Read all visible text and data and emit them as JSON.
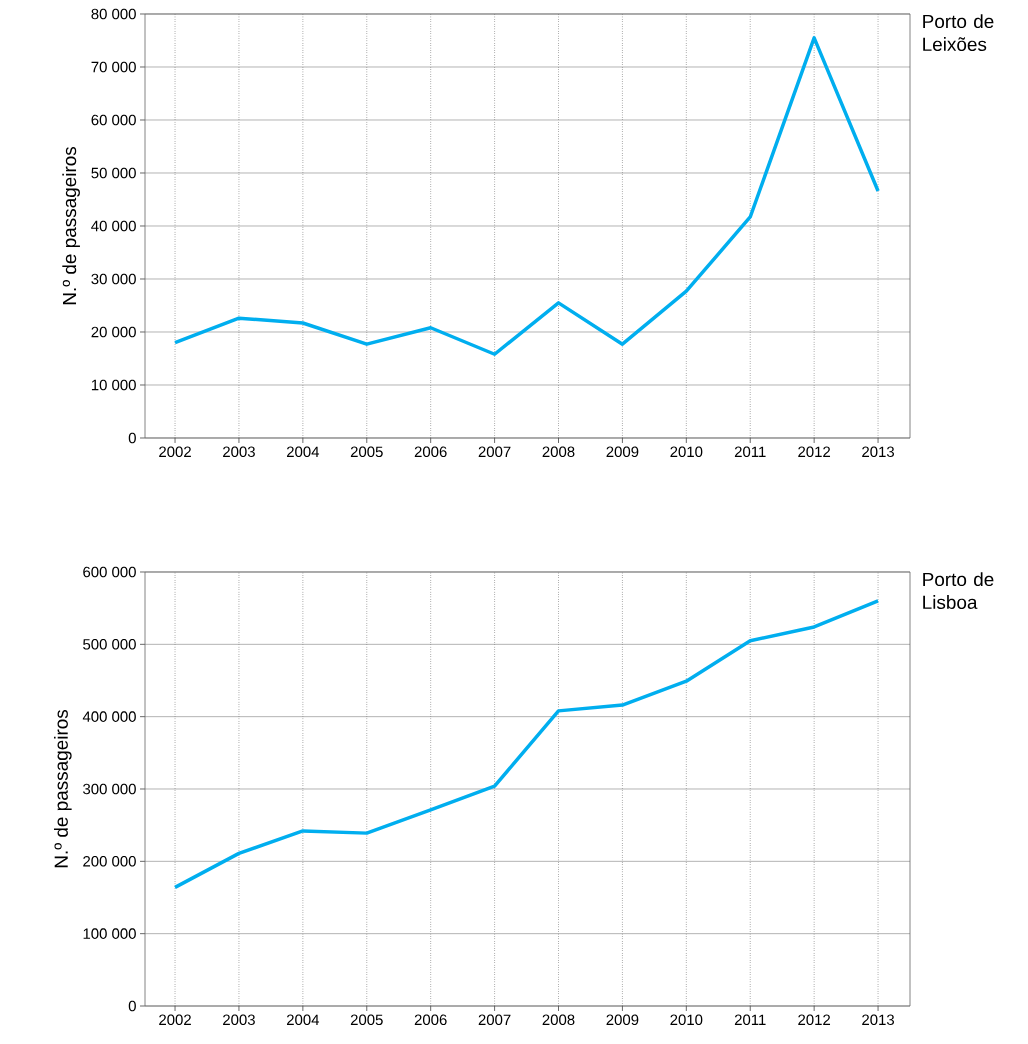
{
  "chart_data": [
    {
      "type": "line",
      "annotations": [
        "Porto de Leixões"
      ],
      "ylabel": "N.º de passageiros",
      "categories": [
        "2002",
        "2003",
        "2004",
        "2005",
        "2006",
        "2007",
        "2008",
        "2009",
        "2010",
        "2011",
        "2012",
        "2013"
      ],
      "color": "#00aeef",
      "grid": true,
      "marker": "none",
      "line_style": "solid",
      "values": [
        18000,
        22600,
        21700,
        17700,
        20800,
        15800,
        25500,
        17700,
        27700,
        41700,
        75500,
        46600
      ],
      "ylim": [
        0,
        80000
      ],
      "yticks": [
        {
          "value": 0,
          "label": "0"
        },
        {
          "value": 10000,
          "label": "10 000"
        },
        {
          "value": 20000,
          "label": "20 000"
        },
        {
          "value": 30000,
          "label": "30 000"
        },
        {
          "value": 40000,
          "label": "40 000"
        },
        {
          "value": 50000,
          "label": "50 000"
        },
        {
          "value": 60000,
          "label": "60 000"
        },
        {
          "value": 70000,
          "label": "70 000"
        },
        {
          "value": 80000,
          "label": "80 000"
        }
      ]
    },
    {
      "type": "line",
      "annotations": [
        "Porto de Lisboa"
      ],
      "ylabel": "N.º de passageiros",
      "categories": [
        "2002",
        "2003",
        "2004",
        "2005",
        "2006",
        "2007",
        "2008",
        "2009",
        "2010",
        "2011",
        "2012",
        "2013"
      ],
      "color": "#00aeef",
      "grid": true,
      "marker": "none",
      "line_style": "solid",
      "values": [
        164000,
        211000,
        242000,
        239000,
        271000,
        304000,
        408000,
        416000,
        449000,
        505000,
        524000,
        560000
      ],
      "ylim": [
        0,
        600000
      ],
      "yticks": [
        {
          "value": 0,
          "label": "0"
        },
        {
          "value": 100000,
          "label": "100 000"
        },
        {
          "value": 200000,
          "label": "200 000"
        },
        {
          "value": 300000,
          "label": "300 000"
        },
        {
          "value": 400000,
          "label": "400 000"
        },
        {
          "value": 500000,
          "label": "500 000"
        },
        {
          "value": 600000,
          "label": "600 000"
        }
      ]
    }
  ]
}
